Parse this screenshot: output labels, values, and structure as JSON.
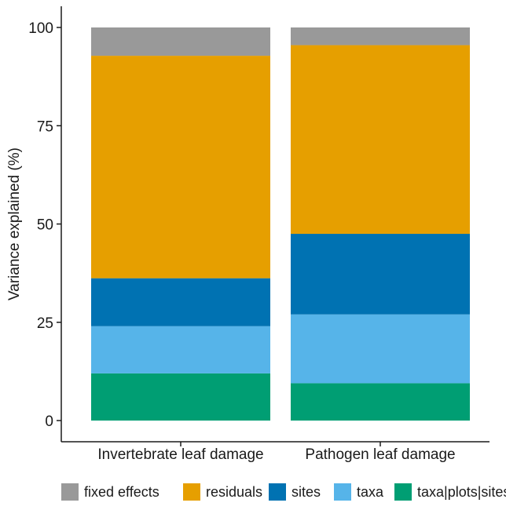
{
  "chart_data": {
    "type": "bar",
    "stacked": true,
    "title": "",
    "xlabel": "",
    "ylabel": "Variance explained (%)",
    "categories": [
      "Invertebrate leaf damage",
      "Pathogen leaf damage"
    ],
    "ylim": [
      0,
      100
    ],
    "yticks": [
      0,
      25,
      50,
      75,
      100
    ],
    "grid": false,
    "legend_position": "bottom",
    "series": [
      {
        "name": "taxa|plots|sites",
        "color": "#009E73",
        "values": [
          12,
          9.5
        ]
      },
      {
        "name": "taxa",
        "color": "#56B4E9",
        "values": [
          12,
          17.5
        ]
      },
      {
        "name": "sites",
        "color": "#0072B2",
        "values": [
          12.2,
          20.5
        ]
      },
      {
        "name": "residuals",
        "color": "#E69F00",
        "values": [
          56.6,
          48
        ]
      },
      {
        "name": "fixed effects",
        "color": "#999999",
        "values": [
          7.2,
          4.5
        ]
      }
    ],
    "legend_order": [
      "fixed effects",
      "residuals",
      "sites",
      "taxa",
      "taxa|plots|sites"
    ]
  }
}
